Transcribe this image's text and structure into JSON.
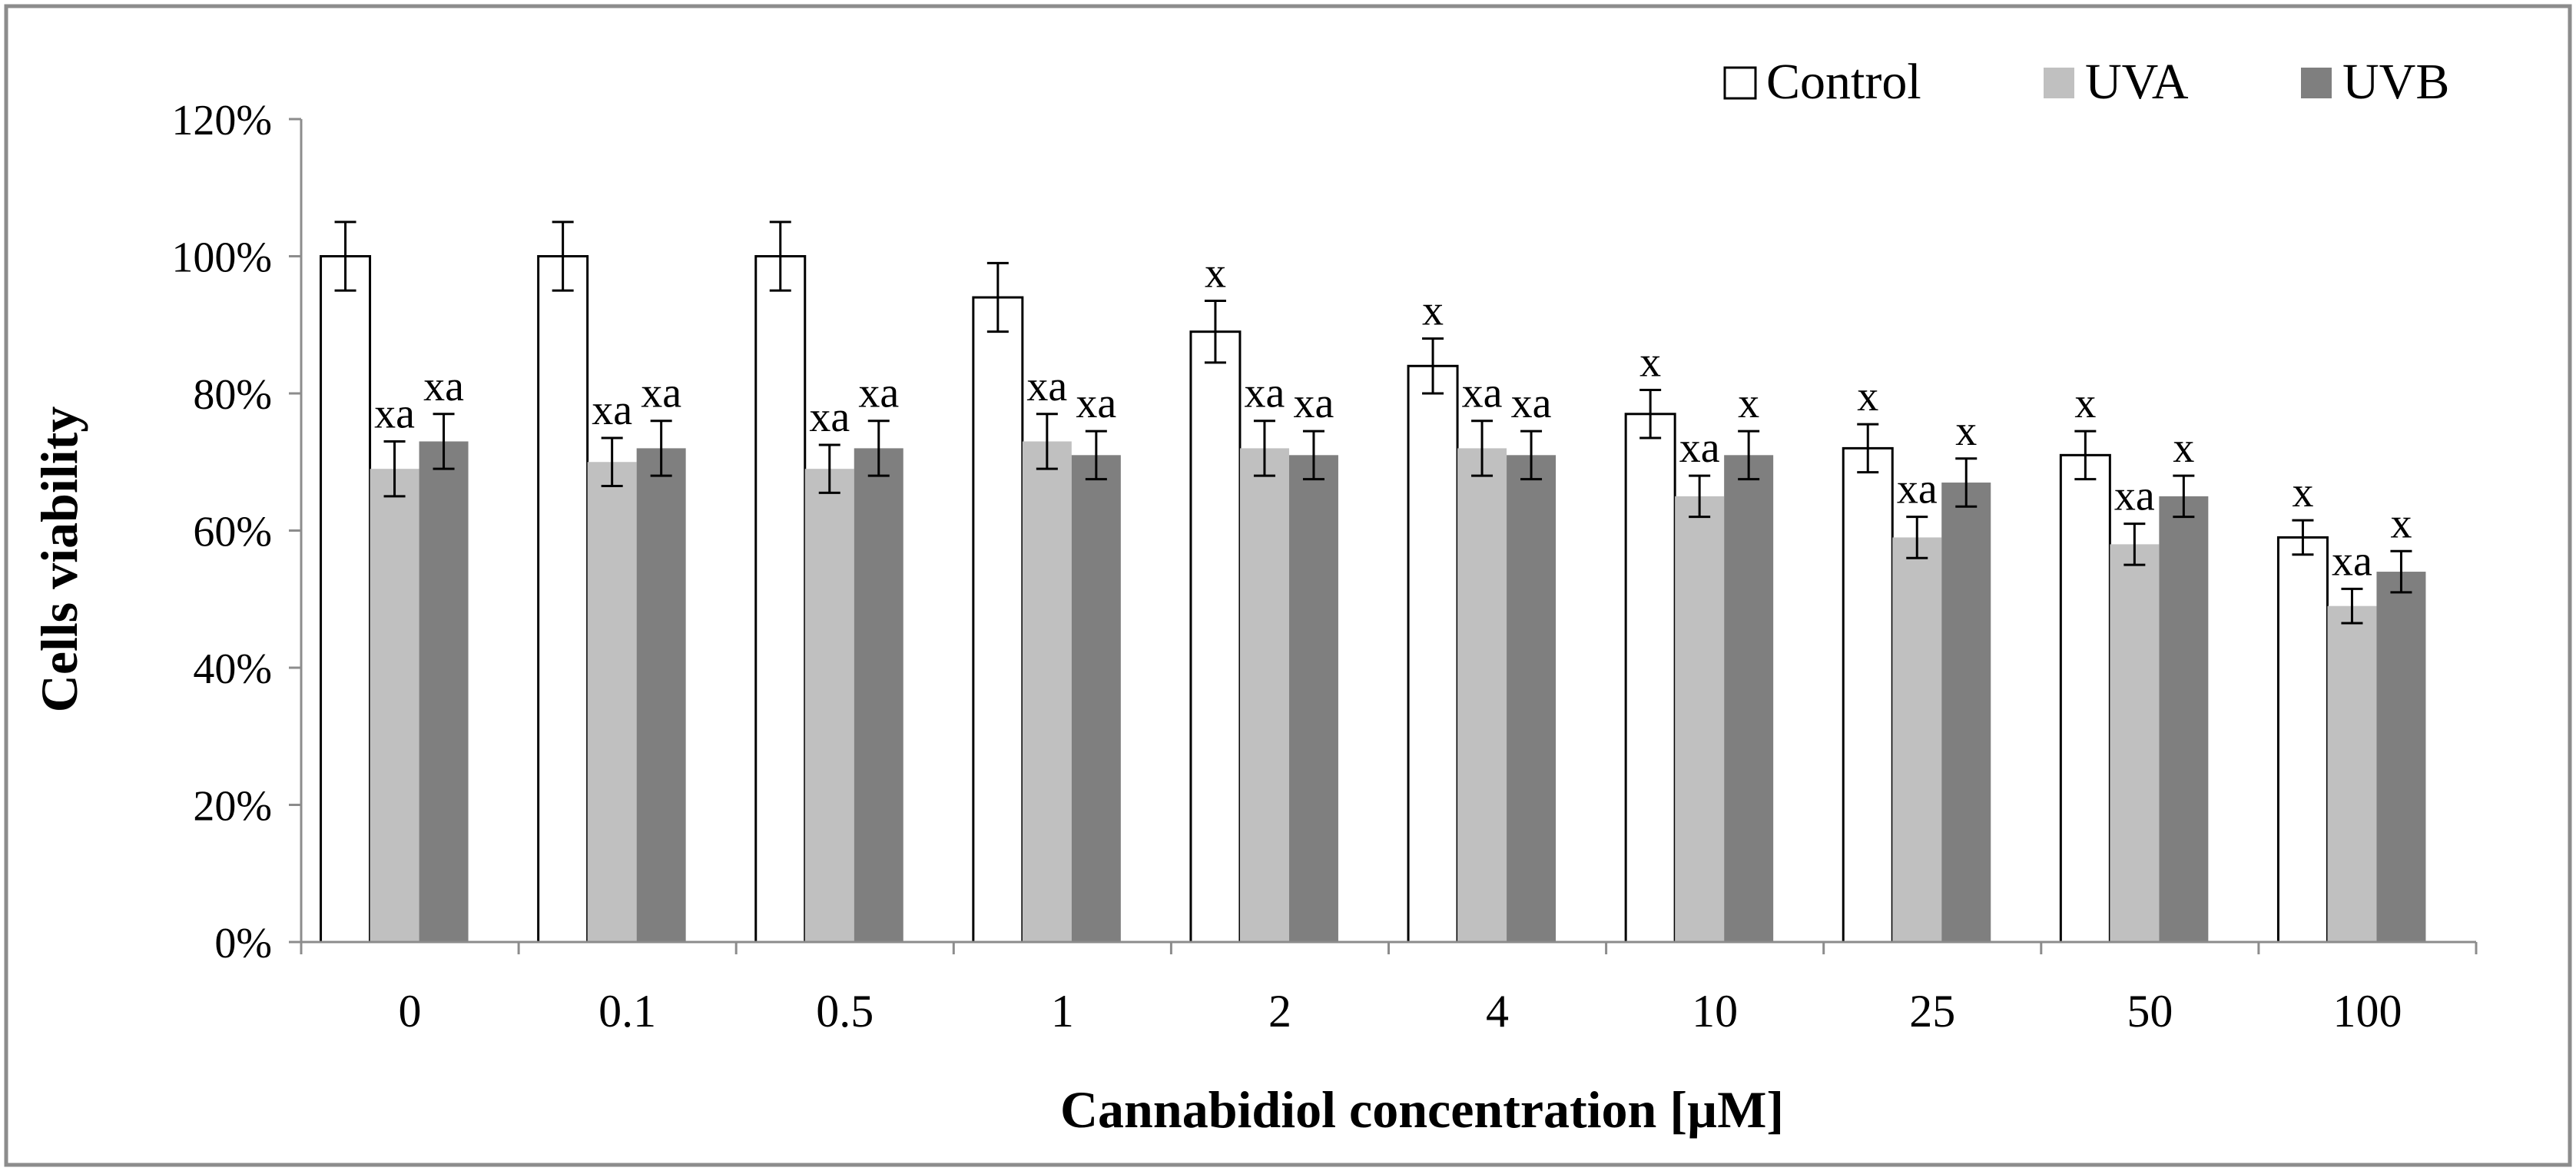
{
  "chart_data": {
    "type": "bar",
    "title": "",
    "xlabel": "Cannabidiol concentration [µM]",
    "ylabel": "Cells viability",
    "ylim": [
      0,
      1.2
    ],
    "yticks": [
      0,
      0.2,
      0.4,
      0.6,
      0.8,
      1.0,
      1.2
    ],
    "ytick_labels": [
      "0%",
      "20%",
      "40%",
      "60%",
      "80%",
      "100%",
      "120%"
    ],
    "grid": false,
    "legend_position": "top-right",
    "categories": [
      "0",
      "0.1",
      "0.5",
      "1",
      "2",
      "4",
      "10",
      "25",
      "50",
      "100"
    ],
    "series": [
      {
        "name": "Control",
        "color": "#ffffff",
        "values": [
          1.0,
          1.0,
          1.0,
          0.94,
          0.89,
          0.84,
          0.77,
          0.72,
          0.71,
          0.59
        ],
        "errors": [
          0.05,
          0.05,
          0.05,
          0.05,
          0.045,
          0.04,
          0.035,
          0.035,
          0.035,
          0.025
        ],
        "annotations": [
          "",
          "",
          "",
          "",
          "x",
          "x",
          "x",
          "x",
          "x",
          "x"
        ]
      },
      {
        "name": "UVA",
        "color": "#c0c0c0",
        "values": [
          0.69,
          0.7,
          0.69,
          0.73,
          0.72,
          0.72,
          0.65,
          0.59,
          0.58,
          0.49
        ],
        "errors": [
          0.04,
          0.035,
          0.035,
          0.04,
          0.04,
          0.04,
          0.03,
          0.03,
          0.03,
          0.025
        ],
        "annotations": [
          "xa",
          "xa",
          "xa",
          "xa",
          "xa",
          "xa",
          "xa",
          "xa",
          "xa",
          "xa"
        ]
      },
      {
        "name": "UVB",
        "color": "#7f7f7f",
        "values": [
          0.73,
          0.72,
          0.72,
          0.71,
          0.71,
          0.71,
          0.71,
          0.67,
          0.65,
          0.54
        ],
        "errors": [
          0.04,
          0.04,
          0.04,
          0.035,
          0.035,
          0.035,
          0.035,
          0.035,
          0.03,
          0.03
        ],
        "annotations": [
          "xa",
          "xa",
          "xa",
          "xa",
          "xa",
          "xa",
          "x",
          "x",
          "x",
          "x"
        ]
      }
    ]
  }
}
